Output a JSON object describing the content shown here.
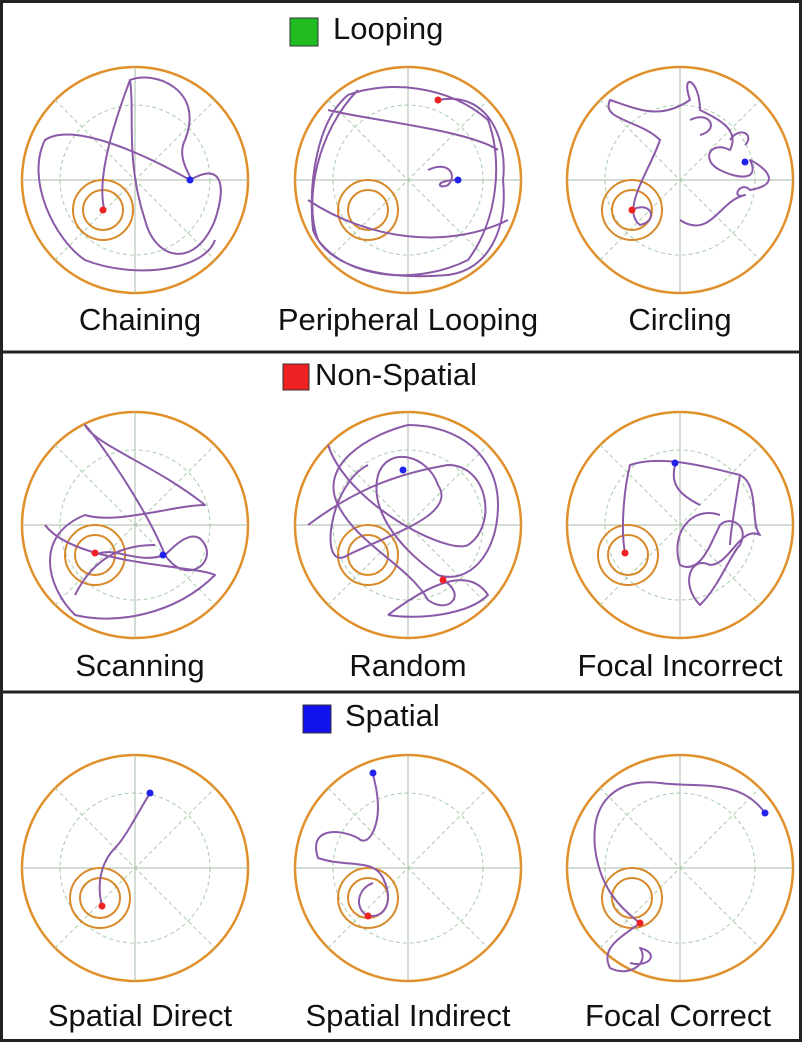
{
  "sections": [
    {
      "title": "Looping",
      "panels": [
        "Chaining",
        "Peripheral Looping",
        "Circling"
      ]
    },
    {
      "title": "Non-Spatial",
      "panels": [
        "Scanning",
        "Random",
        "Focal Incorrect"
      ]
    },
    {
      "title": "Spatial",
      "panels": [
        "Spatial Direct",
        "Spatial Indirect",
        "Focal Correct"
      ]
    }
  ]
}
